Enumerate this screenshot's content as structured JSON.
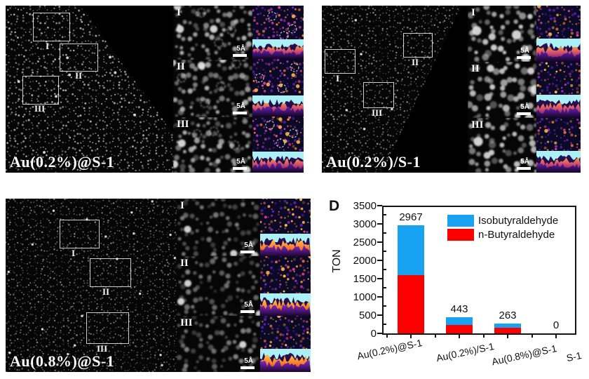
{
  "figure_panels": [
    {
      "label": "Au(0.2%)@S-1",
      "regions": [
        "I",
        "II",
        "III"
      ],
      "scale_bar": "5Å"
    },
    {
      "label": "Au(0.2%)/S-1",
      "regions": [
        "I",
        "II",
        "III"
      ],
      "scale_bar": "5Å"
    },
    {
      "label": "Au(0.8%)@S-1",
      "regions": [
        "I",
        "II",
        "III"
      ],
      "scale_bar": "5Å"
    }
  ],
  "chart_data": {
    "type": "bar",
    "stacked": true,
    "panel_label": "D",
    "ylabel": "TON",
    "ylim": [
      0,
      3500
    ],
    "yticks": [
      0,
      500,
      1000,
      1500,
      2000,
      2500,
      3000,
      3500
    ],
    "categories": [
      "Au(0.2%)@S-1",
      "Au(0.2%)/S-1",
      "Au(0.8%)@S-1",
      "S-1"
    ],
    "series": [
      {
        "name": "n-Butyraldehyde",
        "color": "#FC0000",
        "values": [
          1600,
          230,
          150,
          0
        ]
      },
      {
        "name": "Isobutyraldehyde",
        "color": "#18A2F2",
        "values": [
          1367,
          213,
          113,
          0
        ]
      }
    ],
    "totals": [
      2967,
      443,
      263,
      0
    ],
    "legend_order": [
      "Isobutyraldehyde",
      "n-Butyraldehyde"
    ],
    "legend_position": "top-right",
    "grid": false
  }
}
